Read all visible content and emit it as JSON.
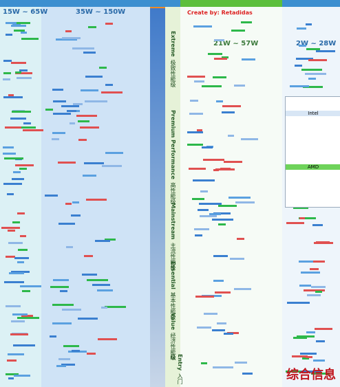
{
  "columns": [
    "15W ~ 65W",
    "35W ~ 150W",
    "21W ~ 57W",
    "2W ~ 28W"
  ],
  "credit": "Create by: Retadidas",
  "tiers": [
    {
      "en": "Extreme",
      "zh": "极致性能级"
    },
    {
      "en": "Premium Performance",
      "zh": "高性能级"
    },
    {
      "en": "Mainstream",
      "zh": "主流性能级"
    },
    {
      "en": "Essential",
      "zh": "基本性能级"
    },
    {
      "en": "Value",
      "zh": "经济性能级"
    },
    {
      "en": "Entry",
      "zh": "入门级"
    }
  ],
  "legend": [
    "Intel",
    "AMD"
  ],
  "watermark": "综合信息"
}
